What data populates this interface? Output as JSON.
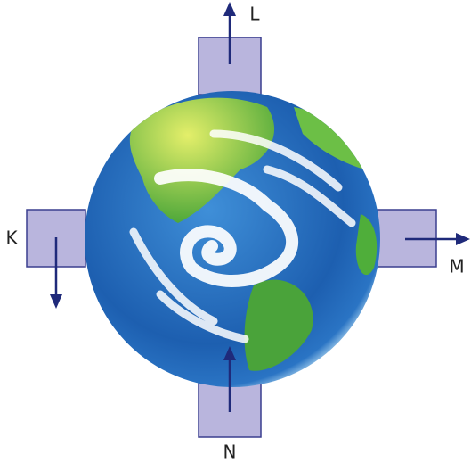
{
  "nodes": [
    {
      "label": "K"
    },
    {
      "label": "L"
    },
    {
      "label": "M"
    },
    {
      "label": "N"
    }
  ]
}
